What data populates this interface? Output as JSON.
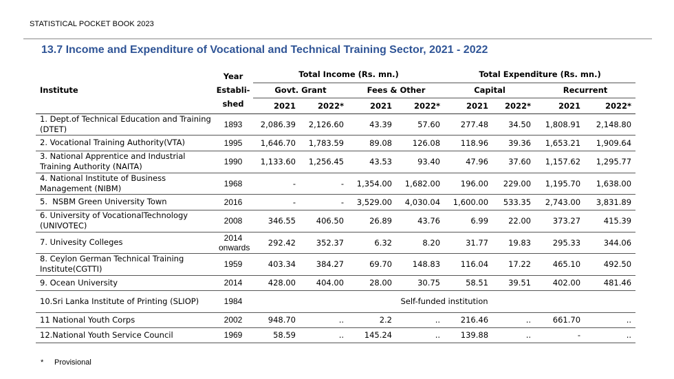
{
  "header": {
    "text": "STATISTICAL POCKET BOOK 2023"
  },
  "title": "13.7 Income and Expenditure of Vocational and Technical Training Sector, 2021 - 2022",
  "table": {
    "head": {
      "institute": "Institute",
      "year_lines": [
        "Year",
        "Establi-",
        "shed"
      ],
      "total_income": "Total Income (Rs. mn.)",
      "total_expenditure": "Total Expenditure (Rs. mn.)",
      "govt_grant": "Govt. Grant",
      "fees_other": "Fees & Other",
      "capital": "Capital",
      "recurrent": "Recurrent",
      "y2021": "2021",
      "y2022": "2022*"
    },
    "rows": [
      {
        "institute": "1. Dept.of Technical Education and Training (DTET)",
        "year": "1893",
        "values": [
          "2,086.39",
          "2,126.60",
          "43.39",
          "57.60",
          "277.48",
          "34.50",
          "1,808.91",
          "2,148.80"
        ]
      },
      {
        "institute": "2. Vocational Training Authority(VTA)",
        "year": "1995",
        "values": [
          "1,646.70",
          "1,783.59",
          "89.08",
          "126.08",
          "118.96",
          "39.36",
          "1,653.21",
          "1,909.64"
        ]
      },
      {
        "institute": "3. National Apprentice and Industrial Training Authority (NAITA)",
        "year": "1990",
        "values": [
          "1,133.60",
          "1,256.45",
          "43.53",
          "93.40",
          "47.96",
          "37.60",
          "1,157.62",
          "1,295.77"
        ]
      },
      {
        "institute": "4. National Institute of Business Management (NIBM)",
        "year": "1968",
        "values": [
          "-",
          "-",
          "1,354.00",
          "1,682.00",
          "196.00",
          "229.00",
          "1,195.70",
          "1,638.00"
        ]
      },
      {
        "institute": "5.  NSBM Green University Town",
        "year": "2016",
        "values": [
          "-",
          "-",
          "3,529.00",
          "4,030.04",
          "1,600.00",
          "533.35",
          "2,743.00",
          "3,831.89"
        ]
      },
      {
        "institute": "6. University of VocationalTechnology (UNIVOTEC)",
        "year": "2008",
        "values": [
          "346.55",
          "406.50",
          "26.89",
          "43.76",
          "6.99",
          "22.00",
          "373.27",
          "415.39"
        ]
      },
      {
        "institute": "7. Univesity Colleges",
        "year": "2014 onwards",
        "values": [
          "292.42",
          "352.37",
          "6.32",
          "8.20",
          "31.77",
          "19.83",
          "295.33",
          "344.06"
        ]
      },
      {
        "institute": "8. Ceylon German Technical  Training Institute(CGTTI)",
        "year": "1959",
        "values": [
          "403.34",
          "384.27",
          "69.70",
          "148.83",
          "116.04",
          "17.22",
          "465.10",
          "492.50"
        ]
      },
      {
        "institute": "9. Ocean University",
        "year": "2014",
        "values": [
          "428.00",
          "404.00",
          "28.00",
          "30.75",
          "58.51",
          "39.51",
          "402.00",
          "481.46"
        ]
      },
      {
        "institute": "10.Sri Lanka Institute of Printing (SLIOP)",
        "year": "1984",
        "merged_text": "Self-funded institution"
      },
      {
        "institute": "11 National Youth Corps",
        "year": "2002",
        "values": [
          "948.70",
          "..",
          "2.2",
          "..",
          "216.46",
          "..",
          "661.70",
          ".."
        ]
      },
      {
        "institute": "12.National Youth Service Council",
        "year": "1969",
        "values": [
          "58.59",
          "..",
          "145.24",
          "..",
          "139.88",
          "..",
          "-",
          ".."
        ]
      }
    ]
  },
  "footnote": {
    "symbol": "*",
    "text": "Provisional"
  }
}
